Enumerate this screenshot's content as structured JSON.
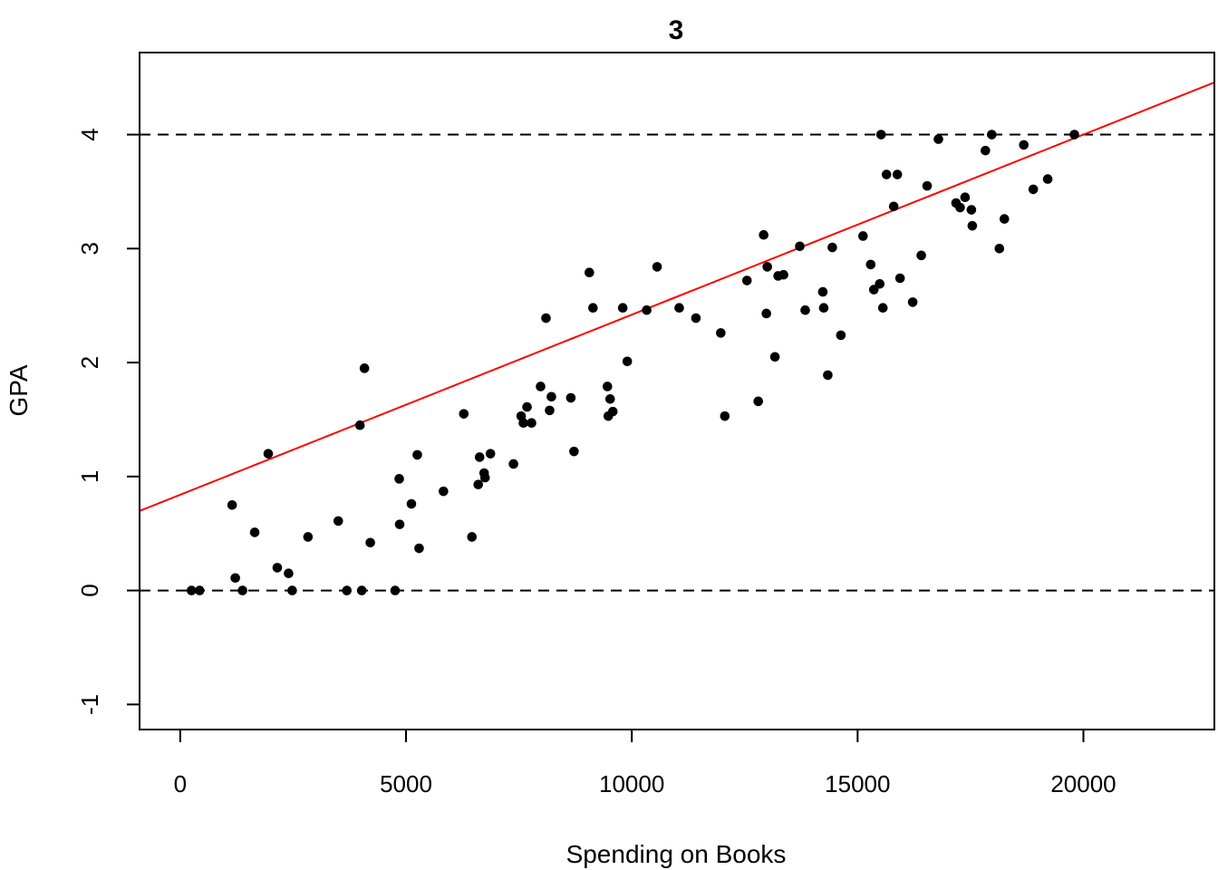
{
  "chart_data": {
    "type": "scatter",
    "title": "3",
    "xlabel": "Spending on Books",
    "ylabel": "GPA",
    "xlim": [
      -900,
      22900
    ],
    "ylim": [
      -1.22,
      4.72
    ],
    "xticks": [
      0,
      5000,
      10000,
      15000,
      20000
    ],
    "yticks": [
      -1,
      0,
      1,
      2,
      3,
      4
    ],
    "grid": false,
    "legend": "none",
    "colors": {
      "points": "#000000",
      "fit_line": "#ff0000",
      "reference_lines": "#000000"
    },
    "reference_lines": [
      0,
      4
    ],
    "fit_line": {
      "intercept": 0.84,
      "slope": 0.000158
    },
    "series": [
      {
        "values": [
          [
            250,
            0
          ],
          [
            430,
            0
          ],
          [
            1150,
            0.75
          ],
          [
            1220,
            0.11
          ],
          [
            1380,
            0
          ],
          [
            1650,
            0.51
          ],
          [
            1950,
            1.2
          ],
          [
            2150,
            0.2
          ],
          [
            2400,
            0.15
          ],
          [
            2480,
            0
          ],
          [
            2830,
            0.47
          ],
          [
            3500,
            0.61
          ],
          [
            3690,
            0
          ],
          [
            3980,
            1.45
          ],
          [
            4020,
            0
          ],
          [
            4080,
            1.95
          ],
          [
            4210,
            0.42
          ],
          [
            4760,
            0
          ],
          [
            4850,
            0.98
          ],
          [
            4860,
            0.58
          ],
          [
            5120,
            0.76
          ],
          [
            5250,
            1.19
          ],
          [
            5290,
            0.37
          ],
          [
            5830,
            0.87
          ],
          [
            6280,
            1.55
          ],
          [
            6460,
            0.47
          ],
          [
            6600,
            0.93
          ],
          [
            6630,
            1.17
          ],
          [
            6730,
            1.03
          ],
          [
            6750,
            0.99
          ],
          [
            6870,
            1.2
          ],
          [
            7380,
            1.11
          ],
          [
            7550,
            1.53
          ],
          [
            7600,
            1.47
          ],
          [
            7680,
            1.61
          ],
          [
            7780,
            1.47
          ],
          [
            7980,
            1.79
          ],
          [
            8100,
            2.39
          ],
          [
            8180,
            1.58
          ],
          [
            8220,
            1.7
          ],
          [
            8650,
            1.69
          ],
          [
            8720,
            1.22
          ],
          [
            9060,
            2.79
          ],
          [
            9140,
            2.48
          ],
          [
            9460,
            1.79
          ],
          [
            9480,
            1.53
          ],
          [
            9520,
            1.68
          ],
          [
            9580,
            1.57
          ],
          [
            9800,
            2.48
          ],
          [
            9900,
            2.01
          ],
          [
            10330,
            2.46
          ],
          [
            10560,
            2.84
          ],
          [
            11050,
            2.48
          ],
          [
            11420,
            2.39
          ],
          [
            11970,
            2.26
          ],
          [
            12060,
            1.53
          ],
          [
            12550,
            2.72
          ],
          [
            12800,
            1.66
          ],
          [
            12920,
            3.12
          ],
          [
            12980,
            2.43
          ],
          [
            13000,
            2.84
          ],
          [
            13170,
            2.05
          ],
          [
            13240,
            2.76
          ],
          [
            13360,
            2.77
          ],
          [
            13720,
            3.02
          ],
          [
            13840,
            2.46
          ],
          [
            14230,
            2.62
          ],
          [
            14250,
            2.48
          ],
          [
            14340,
            1.89
          ],
          [
            14440,
            3.01
          ],
          [
            14630,
            2.24
          ],
          [
            15120,
            3.11
          ],
          [
            15290,
            2.86
          ],
          [
            15360,
            2.64
          ],
          [
            15490,
            2.69
          ],
          [
            15520,
            4.0
          ],
          [
            15560,
            2.48
          ],
          [
            15640,
            3.65
          ],
          [
            15800,
            3.37
          ],
          [
            15880,
            3.65
          ],
          [
            15940,
            2.74
          ],
          [
            16220,
            2.53
          ],
          [
            16410,
            2.94
          ],
          [
            16540,
            3.55
          ],
          [
            16790,
            3.96
          ],
          [
            17180,
            3.4
          ],
          [
            17270,
            3.36
          ],
          [
            17380,
            3.45
          ],
          [
            17520,
            3.34
          ],
          [
            17540,
            3.2
          ],
          [
            17830,
            3.86
          ],
          [
            17970,
            4.0
          ],
          [
            18140,
            3.0
          ],
          [
            18250,
            3.26
          ],
          [
            18680,
            3.91
          ],
          [
            18890,
            3.52
          ],
          [
            19210,
            3.61
          ],
          [
            19800,
            4.0
          ]
        ]
      }
    ]
  }
}
